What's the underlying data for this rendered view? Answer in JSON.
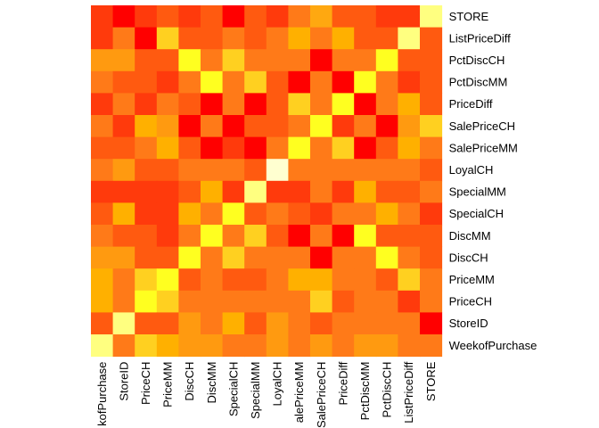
{
  "chart_data": {
    "type": "heatmap",
    "rows": [
      "STORE",
      "ListPriceDiff",
      "PctDiscCH",
      "PctDiscMM",
      "PriceDiff",
      "SalePriceCH",
      "SalePriceMM",
      "LoyalCH",
      "SpecialMM",
      "SpecialCH",
      "DiscMM",
      "DiscCH",
      "PriceMM",
      "PriceCH",
      "StoreID",
      "WeekofPurchase"
    ],
    "columns": [
      "WeekofPurchase",
      "StoreID",
      "PriceCH",
      "PriceMM",
      "DiscCH",
      "DiscMM",
      "SpecialCH",
      "SpecialMM",
      "LoyalCH",
      "SalePriceMM",
      "SalePriceCH",
      "PriceDiff",
      "PctDiscMM",
      "PctDiscCH",
      "ListPriceDiff",
      "STORE"
    ],
    "x_tick_label_visible_text": [
      "kofPurchase",
      "StoreID",
      "PriceCH",
      "PriceMM",
      "DiscCH",
      "DiscMM",
      "SpecialCH",
      "SpecialMM",
      "LoyalCH",
      "alePriceMM",
      "SalePriceCH",
      "PriceDiff",
      "PctDiscMM",
      "PctDiscCH",
      "ListPriceDiff",
      "STORE"
    ],
    "color_scale": [
      "#ff0000",
      "#ff6a00",
      "#ffb000",
      "#ffff60"
    ],
    "cell_colors": [
      [
        "#ff3a0c",
        "#ff0000",
        "#ff3a0c",
        "#ff5a10",
        "#ff3a0c",
        "#ff5a10",
        "#ff0000",
        "#ff5a10",
        "#ff3a0c",
        "#ff7a18",
        "#ffa810",
        "#ff5a10",
        "#ff5a10",
        "#ff3a0c",
        "#ff3a0c",
        "#ffff80"
      ],
      [
        "#ff3a0c",
        "#ff7a18",
        "#ff0000",
        "#ffd020",
        "#ff5a10",
        "#ff5a10",
        "#ff7a18",
        "#ff5a10",
        "#ff7a18",
        "#ffb000",
        "#ff7a18",
        "#ffb000",
        "#ff5a10",
        "#ff5a10",
        "#ffff80",
        "#ff5a10"
      ],
      [
        "#ff9a10",
        "#ff9a10",
        "#ff5a10",
        "#ff5a10",
        "#ffff20",
        "#ff7a18",
        "#ffd020",
        "#ff7a18",
        "#ff7a18",
        "#ff7a18",
        "#ff0000",
        "#ff7a18",
        "#ff7a18",
        "#ffff20",
        "#ff5a10",
        "#ff5a10"
      ],
      [
        "#ff7a18",
        "#ff5a10",
        "#ff5a10",
        "#ff3a0c",
        "#ff7a18",
        "#ffff20",
        "#ff7a18",
        "#ffd020",
        "#ff5a10",
        "#ff0000",
        "#ff7a18",
        "#ff0000",
        "#ffff20",
        "#ff7a18",
        "#ff3a0c",
        "#ff5a10"
      ],
      [
        "#ff3a0c",
        "#ff7a18",
        "#ff3a0c",
        "#ff7a18",
        "#ff5a10",
        "#ff0000",
        "#ff7a18",
        "#ff0000",
        "#ff5a10",
        "#ffd020",
        "#ff7a18",
        "#ffff20",
        "#ff0000",
        "#ff7a18",
        "#ffb000",
        "#ff5a10"
      ],
      [
        "#ff7a18",
        "#ff3a0c",
        "#ffb000",
        "#ff9a10",
        "#ff0000",
        "#ff7a18",
        "#ff0000",
        "#ff5a10",
        "#ff5a10",
        "#ff7a18",
        "#ffff20",
        "#ff3a0c",
        "#ff7a18",
        "#ff0000",
        "#ff9a10",
        "#ffd020"
      ],
      [
        "#ff5a10",
        "#ff5a10",
        "#ff7a18",
        "#ffb000",
        "#ff5a10",
        "#ff0000",
        "#ff3a0c",
        "#ff0000",
        "#ff7a18",
        "#ffff20",
        "#ff7a18",
        "#ffd020",
        "#ff0000",
        "#ff5a10",
        "#ffb000",
        "#ff7a18"
      ],
      [
        "#ff7a18",
        "#ff9a10",
        "#ff5a10",
        "#ff5a10",
        "#ff7a18",
        "#ff7a18",
        "#ff7a18",
        "#ff5a10",
        "#ffffd0",
        "#ff7a18",
        "#ff7a18",
        "#ff7a18",
        "#ff7a18",
        "#ff7a18",
        "#ff7a18",
        "#ff5a10"
      ],
      [
        "#ff3a0c",
        "#ff3a0c",
        "#ff3a0c",
        "#ff3a0c",
        "#ff5a10",
        "#ffb000",
        "#ff3a0c",
        "#ffff80",
        "#ff3a0c",
        "#ff3a0c",
        "#ff7a18",
        "#ff3a0c",
        "#ffb000",
        "#ff5a10",
        "#ff5a10",
        "#ff7a18"
      ],
      [
        "#ff5a10",
        "#ffb000",
        "#ff3a0c",
        "#ff3a0c",
        "#ffb000",
        "#ff7a18",
        "#ffff20",
        "#ff5a10",
        "#ff7a18",
        "#ff5a10",
        "#ff3a0c",
        "#ff7a18",
        "#ff7a18",
        "#ffb000",
        "#ff7a18",
        "#ff3a0c"
      ],
      [
        "#ff7a18",
        "#ff5a10",
        "#ff5a10",
        "#ff3a0c",
        "#ff7a18",
        "#ffff20",
        "#ff7a18",
        "#ffd020",
        "#ff5a10",
        "#ff0000",
        "#ff7a18",
        "#ff0000",
        "#ffff20",
        "#ff5a10",
        "#ff5a10",
        "#ff5a10"
      ],
      [
        "#ff9a10",
        "#ff9a10",
        "#ff5a10",
        "#ff5a10",
        "#ffff20",
        "#ff7a18",
        "#ffd020",
        "#ff7a18",
        "#ff7a18",
        "#ff7a18",
        "#ff0000",
        "#ff7a18",
        "#ff7a18",
        "#ffff20",
        "#ff7a18",
        "#ff5a10"
      ],
      [
        "#ffb000",
        "#ff7a18",
        "#ffd020",
        "#ffff20",
        "#ff5a10",
        "#ff7a18",
        "#ff5a10",
        "#ff5a10",
        "#ff7a18",
        "#ffb000",
        "#ffb000",
        "#ff7a18",
        "#ff7a18",
        "#ff5a10",
        "#ffd020",
        "#ff7a18"
      ],
      [
        "#ffb000",
        "#ff7a18",
        "#ffff20",
        "#ffd020",
        "#ff7a18",
        "#ff7a18",
        "#ff7a18",
        "#ff7a18",
        "#ff7a18",
        "#ff7a18",
        "#ffd020",
        "#ff5a10",
        "#ff7a18",
        "#ff7a18",
        "#ff3a0c",
        "#ff7a18"
      ],
      [
        "#ff5a10",
        "#ffff80",
        "#ff5a10",
        "#ff5a10",
        "#ff9a10",
        "#ff7a18",
        "#ffb000",
        "#ff5a10",
        "#ff9a10",
        "#ff7a18",
        "#ff5a10",
        "#ff7a18",
        "#ff7a18",
        "#ff7a18",
        "#ff7a18",
        "#ff0000"
      ],
      [
        "#ffff80",
        "#ff7a18",
        "#ffd020",
        "#ffb000",
        "#ff9a10",
        "#ff9a10",
        "#ff7a18",
        "#ff7a18",
        "#ff9a10",
        "#ff7a18",
        "#ff9a10",
        "#ff7a18",
        "#ff9a10",
        "#ff9a10",
        "#ff7a18",
        "#ff7a18"
      ]
    ]
  }
}
